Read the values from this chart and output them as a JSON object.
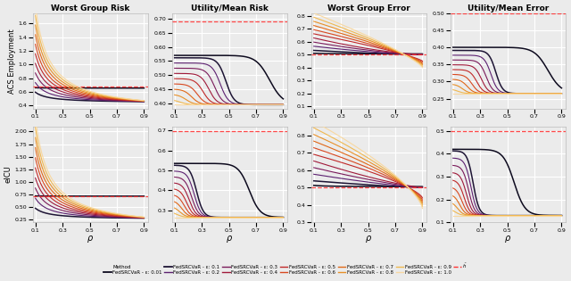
{
  "epsilons": [
    0.01,
    0.1,
    0.2,
    0.3,
    0.4,
    0.5,
    0.6,
    0.7,
    0.8,
    0.9,
    1.0
  ],
  "colors": [
    "#0d0a1e",
    "#1e1535",
    "#5c2070",
    "#7a1a5a",
    "#a01a3a",
    "#c02828",
    "#d84820",
    "#e06818",
    "#e89028",
    "#f0b850",
    "#f8d8a0"
  ],
  "col_titles": [
    "Worst Group Risk",
    "Utility/Mean Risk",
    "Worst Group Error",
    "Utility/Mean Error"
  ],
  "row_labels": [
    "ACS Employment",
    "eICU"
  ],
  "acs_wgr_hbar": 0.675,
  "acs_umr_hbar": 0.69,
  "acs_wge_hbar": 0.5,
  "acs_ume_hbar": 0.5,
  "eicu_wgr_hbar": 0.72,
  "eicu_umr_hbar": 0.695,
  "eicu_wge_hbar": 0.5,
  "eicu_ume_hbar": 0.5,
  "acs_wgr_ylim": [
    0.35,
    1.75
  ],
  "acs_umr_ylim": [
    0.38,
    0.72
  ],
  "acs_wge_ylim": [
    0.08,
    0.82
  ],
  "acs_ume_ylim": [
    0.22,
    0.5
  ],
  "eicu_wgr_ylim": [
    0.2,
    2.1
  ],
  "eicu_umr_ylim": [
    0.24,
    0.72
  ],
  "eicu_wge_ylim": [
    0.3,
    0.85
  ],
  "eicu_ume_ylim": [
    0.1,
    0.52
  ],
  "bg_color": "#ebebeb"
}
